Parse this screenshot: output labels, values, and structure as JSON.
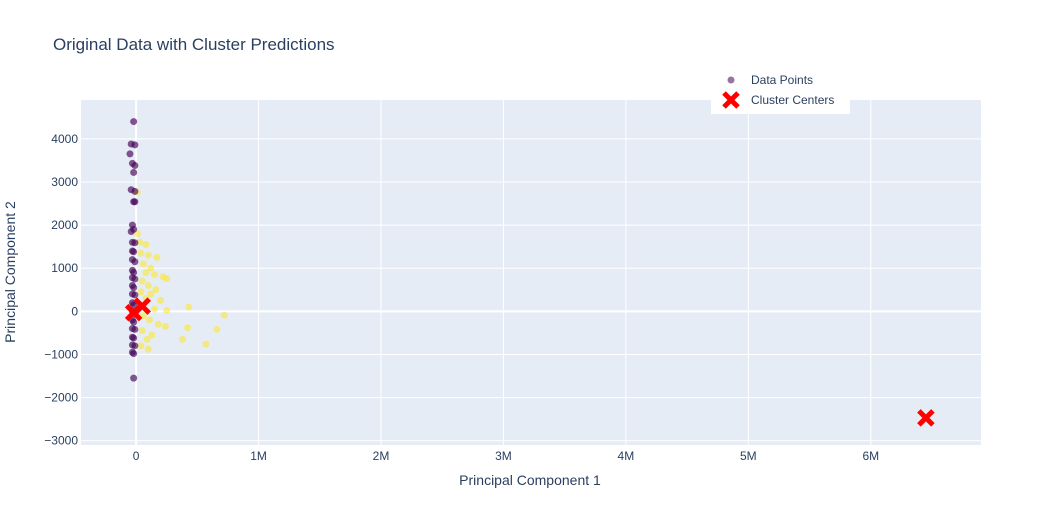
{
  "chart_data": {
    "type": "scatter",
    "title": "Original Data with Cluster Predictions",
    "xlabel": "Principal Component 1",
    "ylabel": "Principal Component 2",
    "xlim": [
      -450000,
      6900000
    ],
    "ylim": [
      -3100000,
      4900000
    ],
    "ylim_units": [
      -3100,
      4900
    ],
    "x_ticks": [
      {
        "value": 0,
        "label": "0"
      },
      {
        "value": 1000000,
        "label": "1M"
      },
      {
        "value": 2000000,
        "label": "2M"
      },
      {
        "value": 3000000,
        "label": "3M"
      },
      {
        "value": 4000000,
        "label": "4M"
      },
      {
        "value": 5000000,
        "label": "5M"
      },
      {
        "value": 6000000,
        "label": "6M"
      }
    ],
    "y_ticks": [
      {
        "value": -3000,
        "label": "−3000"
      },
      {
        "value": -2000,
        "label": "−2000"
      },
      {
        "value": -1000,
        "label": "−1000"
      },
      {
        "value": 0,
        "label": "0"
      },
      {
        "value": 1000,
        "label": "1000"
      },
      {
        "value": 2000,
        "label": "2000"
      },
      {
        "value": 3000,
        "label": "3000"
      },
      {
        "value": 4000,
        "label": "4000"
      }
    ],
    "grid": true,
    "legend_position": "top-right",
    "colors": {
      "plot_bg": "#e5ecf6",
      "grid": "#ffffff",
      "cluster_0": "#440154",
      "cluster_1": "#fde725",
      "centers": "#ff0000"
    },
    "series": [
      {
        "name": "Data Points",
        "marker": "circle",
        "points": [
          {
            "x": -20000,
            "y": 4400,
            "cluster": 0
          },
          {
            "x": -40000,
            "y": 3880,
            "cluster": 0
          },
          {
            "x": -10000,
            "y": 3860,
            "cluster": 0
          },
          {
            "x": -50000,
            "y": 3650,
            "cluster": 0
          },
          {
            "x": -30000,
            "y": 3430,
            "cluster": 0
          },
          {
            "x": -10000,
            "y": 3380,
            "cluster": 0
          },
          {
            "x": -20000,
            "y": 3220,
            "cluster": 0
          },
          {
            "x": -40000,
            "y": 2820,
            "cluster": 0
          },
          {
            "x": -10000,
            "y": 2780,
            "cluster": 0
          },
          {
            "x": -20000,
            "y": 2540,
            "cluster": 0
          },
          {
            "x": -10000,
            "y": 2540,
            "cluster": 0
          },
          {
            "x": -30000,
            "y": 2000,
            "cluster": 0
          },
          {
            "x": -20000,
            "y": 1900,
            "cluster": 0
          },
          {
            "x": -40000,
            "y": 1850,
            "cluster": 0
          },
          {
            "x": -30000,
            "y": 1600,
            "cluster": 0
          },
          {
            "x": -10000,
            "y": 1590,
            "cluster": 0
          },
          {
            "x": -30000,
            "y": 1400,
            "cluster": 0
          },
          {
            "x": -20000,
            "y": 1380,
            "cluster": 0
          },
          {
            "x": -30000,
            "y": 1200,
            "cluster": 0
          },
          {
            "x": -10000,
            "y": 1150,
            "cluster": 0
          },
          {
            "x": -30000,
            "y": 950,
            "cluster": 0
          },
          {
            "x": -20000,
            "y": 900,
            "cluster": 0
          },
          {
            "x": -30000,
            "y": 780,
            "cluster": 0
          },
          {
            "x": -10000,
            "y": 750,
            "cluster": 0
          },
          {
            "x": -30000,
            "y": 600,
            "cluster": 0
          },
          {
            "x": -20000,
            "y": 550,
            "cluster": 0
          },
          {
            "x": -30000,
            "y": 400,
            "cluster": 0
          },
          {
            "x": -10000,
            "y": 380,
            "cluster": 0
          },
          {
            "x": -30000,
            "y": 200,
            "cluster": 0
          },
          {
            "x": -20000,
            "y": 150,
            "cluster": 0
          },
          {
            "x": -30000,
            "y": 0,
            "cluster": 0
          },
          {
            "x": -10000,
            "y": -50,
            "cluster": 0
          },
          {
            "x": -30000,
            "y": -200,
            "cluster": 0
          },
          {
            "x": -20000,
            "y": -250,
            "cluster": 0
          },
          {
            "x": -30000,
            "y": -400,
            "cluster": 0
          },
          {
            "x": -10000,
            "y": -420,
            "cluster": 0
          },
          {
            "x": -30000,
            "y": -600,
            "cluster": 0
          },
          {
            "x": -20000,
            "y": -620,
            "cluster": 0
          },
          {
            "x": -30000,
            "y": -780,
            "cluster": 0
          },
          {
            "x": -10000,
            "y": -800,
            "cluster": 0
          },
          {
            "x": -30000,
            "y": -950,
            "cluster": 0
          },
          {
            "x": -20000,
            "y": -980,
            "cluster": 0
          },
          {
            "x": -20000,
            "y": -1550,
            "cluster": 0
          },
          {
            "x": 10000,
            "y": 2760,
            "cluster": 1
          },
          {
            "x": 10000,
            "y": 1800,
            "cluster": 1
          },
          {
            "x": 30000,
            "y": 1600,
            "cluster": 1
          },
          {
            "x": 80000,
            "y": 1550,
            "cluster": 1
          },
          {
            "x": 40000,
            "y": 1350,
            "cluster": 1
          },
          {
            "x": 100000,
            "y": 1300,
            "cluster": 1
          },
          {
            "x": 170000,
            "y": 1250,
            "cluster": 1
          },
          {
            "x": 60000,
            "y": 1100,
            "cluster": 1
          },
          {
            "x": 120000,
            "y": 1000,
            "cluster": 1
          },
          {
            "x": 80000,
            "y": 900,
            "cluster": 1
          },
          {
            "x": 150000,
            "y": 850,
            "cluster": 1
          },
          {
            "x": 220000,
            "y": 800,
            "cluster": 1
          },
          {
            "x": 250000,
            "y": 760,
            "cluster": 1
          },
          {
            "x": 50000,
            "y": 700,
            "cluster": 1
          },
          {
            "x": 100000,
            "y": 600,
            "cluster": 1
          },
          {
            "x": 160000,
            "y": 500,
            "cluster": 1
          },
          {
            "x": 40000,
            "y": 450,
            "cluster": 1
          },
          {
            "x": 120000,
            "y": 400,
            "cluster": 1
          },
          {
            "x": 80000,
            "y": 300,
            "cluster": 1
          },
          {
            "x": 200000,
            "y": 250,
            "cluster": 1
          },
          {
            "x": 30000,
            "y": 150,
            "cluster": 1
          },
          {
            "x": 430000,
            "y": 100,
            "cluster": 1
          },
          {
            "x": 150000,
            "y": 50,
            "cluster": 1
          },
          {
            "x": 250000,
            "y": 20,
            "cluster": 1
          },
          {
            "x": 720000,
            "y": -90,
            "cluster": 1
          },
          {
            "x": 60000,
            "y": -100,
            "cluster": 1
          },
          {
            "x": 110000,
            "y": -200,
            "cluster": 1
          },
          {
            "x": 180000,
            "y": -300,
            "cluster": 1
          },
          {
            "x": 240000,
            "y": -350,
            "cluster": 1
          },
          {
            "x": 420000,
            "y": -380,
            "cluster": 1
          },
          {
            "x": 660000,
            "y": -420,
            "cluster": 1
          },
          {
            "x": 50000,
            "y": -450,
            "cluster": 1
          },
          {
            "x": 130000,
            "y": -550,
            "cluster": 1
          },
          {
            "x": 90000,
            "y": -650,
            "cluster": 1
          },
          {
            "x": 380000,
            "y": -650,
            "cluster": 1
          },
          {
            "x": 570000,
            "y": -760,
            "cluster": 1
          },
          {
            "x": 40000,
            "y": -800,
            "cluster": 1
          },
          {
            "x": 100000,
            "y": -880,
            "cluster": 1
          }
        ]
      },
      {
        "name": "Cluster Centers",
        "marker": "x",
        "points": [
          {
            "x": -20000,
            "y": -30
          },
          {
            "x": 50000,
            "y": 120
          },
          {
            "x": 6450000,
            "y": -2470
          }
        ]
      }
    ]
  }
}
